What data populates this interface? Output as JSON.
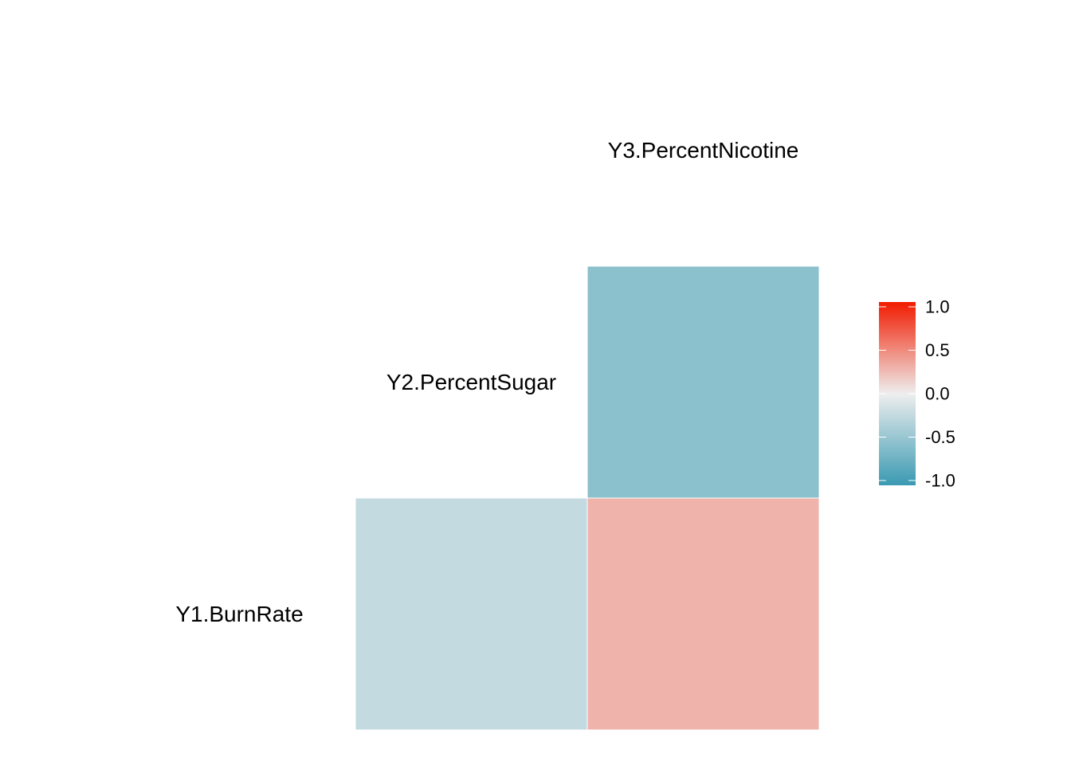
{
  "chart_data": {
    "type": "heatmap",
    "title": "",
    "variables": [
      "Y1.BurnRate",
      "Y2.PercentSugar",
      "Y3.PercentNicotine"
    ],
    "cells": [
      {
        "row": "Y1.BurnRate",
        "col": "Y2.PercentSugar",
        "value": -0.24
      },
      {
        "row": "Y1.BurnRate",
        "col": "Y3.PercentNicotine",
        "value": 0.28
      },
      {
        "row": "Y2.PercentSugar",
        "col": "Y3.PercentNicotine",
        "value": -0.55
      }
    ],
    "legend": {
      "placement": "right",
      "limits": [
        -1,
        1
      ],
      "ticks": [
        1.0,
        0.5,
        0.0,
        -0.5,
        -1.0
      ],
      "tick_labels": [
        "1.0",
        "0.5",
        "0.0",
        "-0.5",
        "-1.0"
      ]
    },
    "colors": {
      "low": "#3A9AB2",
      "mid": "#EEEEEE",
      "high": "#F11B00"
    },
    "grid": false
  }
}
